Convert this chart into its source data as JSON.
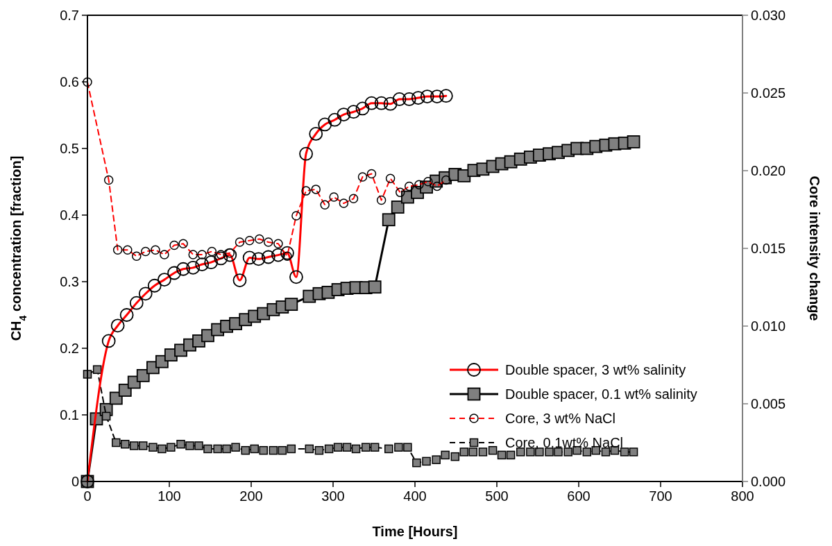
{
  "chart_data": {
    "type": "line",
    "xlabel": "Time [Hours]",
    "ylabel": "CH$_{4}$ concentration [fraction]",
    "y2label": "Core intensity change",
    "xlim": [
      0,
      800
    ],
    "xticks": [
      0,
      100,
      200,
      300,
      400,
      500,
      600,
      700,
      800
    ],
    "ylim": [
      0,
      0.7
    ],
    "yticks": [
      0,
      0.1,
      0.2,
      0.3,
      0.4,
      0.5,
      0.6,
      0.7
    ],
    "y2lim": [
      0,
      0.03
    ],
    "y2ticks": [
      {
        "value": 0,
        "label": "0.000"
      },
      {
        "value": 0.005,
        "label": "0.005"
      },
      {
        "value": 0.01,
        "label": "0.010"
      },
      {
        "value": 0.015,
        "label": "0.015"
      },
      {
        "value": 0.02,
        "label": "0.020"
      },
      {
        "value": 0.025,
        "label": "0.025"
      },
      {
        "value": 0.03,
        "label": "0.030"
      }
    ],
    "grid": false,
    "legend": "right",
    "series": [
      {
        "name": "Double spacer, 3 wt% salinity",
        "color": "#ff0000",
        "marker": "circle",
        "line_style": "solid",
        "x": [
          0,
          26,
          37,
          48,
          60,
          71,
          82,
          94,
          106,
          117,
          129,
          140,
          151,
          163,
          174,
          186,
          198,
          209,
          221,
          233,
          244,
          255,
          267,
          279,
          290,
          302,
          313,
          325,
          336,
          347,
          359,
          370,
          381,
          393,
          404,
          415,
          427,
          438
        ],
        "values": [
          0,
          0.211,
          0.234,
          0.25,
          0.268,
          0.282,
          0.294,
          0.303,
          0.313,
          0.319,
          0.321,
          0.326,
          0.329,
          0.335,
          0.34,
          0.302,
          0.336,
          0.334,
          0.337,
          0.34,
          0.343,
          0.307,
          0.492,
          0.522,
          0.536,
          0.543,
          0.551,
          0.555,
          0.56,
          0.568,
          0.568,
          0.567,
          0.574,
          0.574,
          0.576,
          0.578,
          0.578,
          0.579
        ]
      },
      {
        "name": "Double spacer, 0.1 wt% salinity",
        "color": "#000000",
        "marker": "square",
        "line_style": "solid",
        "x": [
          0,
          11,
          23,
          35,
          46,
          57,
          68,
          80,
          91,
          102,
          114,
          125,
          136,
          147,
          159,
          170,
          181,
          193,
          204,
          215,
          227,
          238,
          249,
          271,
          283,
          294,
          306,
          317,
          328,
          340,
          351,
          368,
          379,
          391,
          403,
          414,
          426,
          437,
          449,
          460,
          472,
          483,
          495,
          506,
          517,
          529,
          541,
          552,
          564,
          575,
          587,
          598,
          610,
          621,
          633,
          644,
          656,
          667
        ],
        "values": [
          0,
          0.094,
          0.108,
          0.125,
          0.137,
          0.149,
          0.159,
          0.171,
          0.18,
          0.19,
          0.197,
          0.205,
          0.211,
          0.219,
          0.228,
          0.233,
          0.237,
          0.243,
          0.248,
          0.252,
          0.258,
          0.262,
          0.266,
          0.278,
          0.282,
          0.284,
          0.288,
          0.29,
          0.291,
          0.291,
          0.292,
          0.393,
          0.412,
          0.427,
          0.434,
          0.442,
          0.451,
          0.456,
          0.461,
          0.459,
          0.467,
          0.469,
          0.473,
          0.477,
          0.48,
          0.484,
          0.487,
          0.49,
          0.492,
          0.494,
          0.497,
          0.5,
          0.5,
          0.503,
          0.505,
          0.507,
          0.508,
          0.51
        ]
      },
      {
        "name": "Core, 3 wt% NaCl",
        "color": "#ff0000",
        "marker": "circle",
        "line_style": "dashed",
        "axis": "y2",
        "x": [
          0,
          26,
          37,
          49,
          60,
          71,
          83,
          94,
          106,
          117,
          129,
          140,
          152,
          163,
          174,
          186,
          198,
          210,
          221,
          233,
          244,
          255,
          267,
          279,
          290,
          301,
          313,
          325,
          336,
          347,
          359,
          370,
          382,
          393,
          405,
          416,
          427,
          438
        ],
        "values": [
          0.0257,
          0.0194,
          0.0149,
          0.0149,
          0.0145,
          0.0148,
          0.0149,
          0.0146,
          0.0152,
          0.0153,
          0.0146,
          0.0146,
          0.0148,
          0.0146,
          0.0147,
          0.0154,
          0.0155,
          0.0156,
          0.0154,
          0.0153,
          0.0145,
          0.0171,
          0.0187,
          0.0188,
          0.0178,
          0.0183,
          0.0179,
          0.0182,
          0.0196,
          0.0198,
          0.0181,
          0.0195,
          0.0186,
          0.019,
          0.0191,
          0.0193,
          0.019,
          0.0194
        ]
      },
      {
        "name": "Core, 0.1wt% NaCl",
        "color": "#000000",
        "marker": "square",
        "line_style": "dashed",
        "axis": "y2",
        "x": [
          0,
          12,
          23,
          35,
          46,
          57,
          68,
          80,
          91,
          102,
          114,
          125,
          136,
          147,
          159,
          170,
          181,
          193,
          204,
          215,
          227,
          238,
          249,
          271,
          283,
          295,
          306,
          317,
          328,
          340,
          351,
          368,
          380,
          391,
          402,
          414,
          426,
          437,
          449,
          460,
          471,
          483,
          495,
          506,
          517,
          529,
          541,
          552,
          564,
          575,
          587,
          598,
          610,
          621,
          633,
          644,
          656,
          667
        ],
        "values": [
          0.0069,
          0.0072,
          0.0042,
          0.0025,
          0.0024,
          0.0023,
          0.0023,
          0.0022,
          0.0021,
          0.0022,
          0.0024,
          0.0023,
          0.0023,
          0.0021,
          0.0021,
          0.0021,
          0.0022,
          0.002,
          0.0021,
          0.002,
          0.002,
          0.002,
          0.0021,
          0.0021,
          0.002,
          0.0021,
          0.0022,
          0.0022,
          0.0021,
          0.0022,
          0.0022,
          0.0021,
          0.0022,
          0.0022,
          0.0012,
          0.0013,
          0.0014,
          0.0017,
          0.0016,
          0.0019,
          0.0019,
          0.0019,
          0.002,
          0.0017,
          0.0017,
          0.0019,
          0.0019,
          0.0019,
          0.0019,
          0.0019,
          0.0019,
          0.002,
          0.0019,
          0.002,
          0.0019,
          0.002,
          0.0019,
          0.0019
        ]
      }
    ]
  }
}
